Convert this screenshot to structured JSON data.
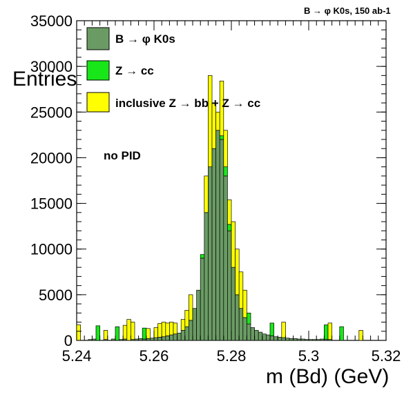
{
  "chart_data": {
    "type": "bar",
    "title": "B → φ K0s, 150 ab-1",
    "xlabel": "m (Bd) (GeV)",
    "ylabel": "Entries",
    "xlim": [
      5.24,
      5.32
    ],
    "ylim": [
      0,
      35000
    ],
    "x_ticks": [
      "5.24",
      "5.26",
      "5.28",
      "5.3",
      "5.32"
    ],
    "y_ticks": [
      "0",
      "5000",
      "10000",
      "15000",
      "20000",
      "25000",
      "30000",
      "35000"
    ],
    "annotation": "no PID",
    "legend_placement": "top-left",
    "bin_width": 0.001,
    "x": [
      5.241,
      5.242,
      5.243,
      5.244,
      5.245,
      5.246,
      5.247,
      5.248,
      5.249,
      5.25,
      5.251,
      5.252,
      5.253,
      5.254,
      5.255,
      5.256,
      5.257,
      5.258,
      5.259,
      5.26,
      5.261,
      5.262,
      5.263,
      5.264,
      5.265,
      5.266,
      5.267,
      5.268,
      5.269,
      5.27,
      5.271,
      5.272,
      5.273,
      5.274,
      5.275,
      5.276,
      5.277,
      5.278,
      5.279,
      5.28,
      5.281,
      5.282,
      5.283,
      5.284,
      5.285,
      5.286,
      5.287,
      5.288,
      5.289,
      5.29,
      5.291,
      5.292,
      5.293,
      5.294,
      5.295,
      5.296,
      5.297,
      5.298,
      5.299,
      5.3,
      5.301,
      5.302,
      5.303,
      5.304,
      5.305,
      5.306,
      5.307,
      5.308,
      5.309,
      5.31,
      5.311,
      5.312,
      5.313,
      5.314,
      5.315,
      5.316,
      5.317,
      5.318,
      5.319,
      5.32
    ],
    "series": [
      {
        "name": "B → φ K0s",
        "color": "#6a9b64",
        "values": [
          0,
          0,
          0,
          100,
          150,
          0,
          0,
          100,
          0,
          150,
          0,
          100,
          150,
          0,
          100,
          150,
          200,
          150,
          200,
          250,
          300,
          350,
          400,
          500,
          600,
          700,
          800,
          1100,
          1500,
          2200,
          3500,
          5500,
          9000,
          14000,
          19000,
          21000,
          23000,
          22000,
          18000,
          12000,
          8000,
          5000,
          3500,
          2500,
          1800,
          1400,
          1100,
          900,
          700,
          600,
          500,
          400,
          350,
          300,
          250,
          200,
          200,
          150,
          150,
          100,
          100,
          100,
          100,
          150,
          100,
          100,
          0,
          0,
          0,
          0,
          0,
          0,
          0,
          0,
          0,
          0,
          0,
          0,
          0,
          0
        ]
      },
      {
        "name": "Z → cc",
        "color": "#19e619",
        "values": [
          0,
          0,
          0,
          0,
          0,
          1600,
          0,
          0,
          0,
          0,
          1500,
          0,
          0,
          0,
          0,
          0,
          0,
          1200,
          0,
          0,
          0,
          0,
          0,
          0,
          0,
          0,
          0,
          0,
          0,
          0,
          0,
          0,
          400,
          0,
          0,
          0,
          0,
          400,
          1000,
          700,
          0,
          0,
          0,
          0,
          1200,
          0,
          0,
          0,
          0,
          0,
          1400,
          0,
          0,
          0,
          0,
          0,
          0,
          0,
          0,
          0,
          0,
          0,
          0,
          0,
          1600,
          0,
          0,
          0,
          1500,
          0,
          0,
          0,
          0,
          0,
          0,
          0,
          0,
          0,
          0,
          0
        ]
      },
      {
        "name": "inclusive Z → bb + Z → cc",
        "color": "#ffff00",
        "values": [
          1700,
          0,
          0,
          0,
          0,
          0,
          0,
          1000,
          0,
          0,
          0,
          0,
          1500,
          2300,
          1900,
          0,
          0,
          0,
          1100,
          0,
          1100,
          1500,
          1600,
          1400,
          1400,
          1200,
          0,
          1200,
          1800,
          2800,
          0,
          0,
          0,
          4000,
          10000,
          5000,
          2000,
          6000,
          4000,
          2700,
          5000,
          5000,
          4000,
          3000,
          0,
          0,
          0,
          0,
          0,
          0,
          0,
          0,
          0,
          1700,
          0,
          0,
          0,
          0,
          0,
          0,
          0,
          0,
          0,
          0,
          0,
          1800,
          0,
          0,
          0,
          0,
          0,
          0,
          0,
          1100,
          0,
          0,
          0,
          0,
          0,
          0
        ]
      }
    ]
  }
}
